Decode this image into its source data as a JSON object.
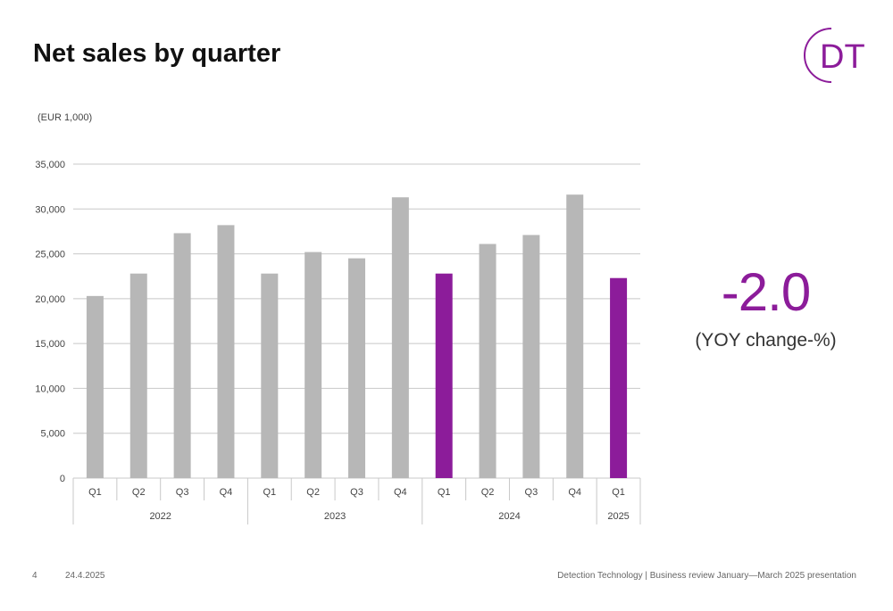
{
  "title": "Net sales by quarter",
  "logo": {
    "text": "DT",
    "color": "#8c1c9a"
  },
  "footer": {
    "page": "4",
    "date": "24.4.2025",
    "text": "Detection Technology | Business review January—March 2025 presentation"
  },
  "kpi": {
    "value": "-2.0",
    "label": "(YOY change-%)",
    "color": "#8c1c9a"
  },
  "chart_data": {
    "type": "bar",
    "unit_label": "(EUR 1,000)",
    "title": "",
    "xlabel": "",
    "ylabel": "",
    "ylim": [
      0,
      35000
    ],
    "yticks": [
      0,
      5000,
      10000,
      15000,
      20000,
      25000,
      30000,
      35000
    ],
    "ytick_labels": [
      "0",
      "5,000",
      "10,000",
      "15,000",
      "20,000",
      "25,000",
      "30,000",
      "35,000"
    ],
    "grid": true,
    "legend": "none",
    "categories": [
      "Q1",
      "Q2",
      "Q3",
      "Q4",
      "Q1",
      "Q2",
      "Q3",
      "Q4",
      "Q1",
      "Q2",
      "Q3",
      "Q4",
      "Q1"
    ],
    "values": [
      20300,
      22800,
      27300,
      28200,
      22800,
      25200,
      24500,
      31300,
      22800,
      26100,
      27100,
      31600,
      22300
    ],
    "highlight": [
      false,
      false,
      false,
      false,
      false,
      false,
      false,
      false,
      true,
      false,
      false,
      false,
      true
    ],
    "groups": [
      {
        "label": "2022",
        "count": 4
      },
      {
        "label": "2023",
        "count": 4
      },
      {
        "label": "2024",
        "count": 4
      },
      {
        "label": "2025",
        "count": 1
      }
    ],
    "colors": {
      "bar": "#b7b7b7",
      "highlight": "#8c1c9a",
      "grid": "#c8c8c8",
      "axis_text": "#444444"
    }
  }
}
